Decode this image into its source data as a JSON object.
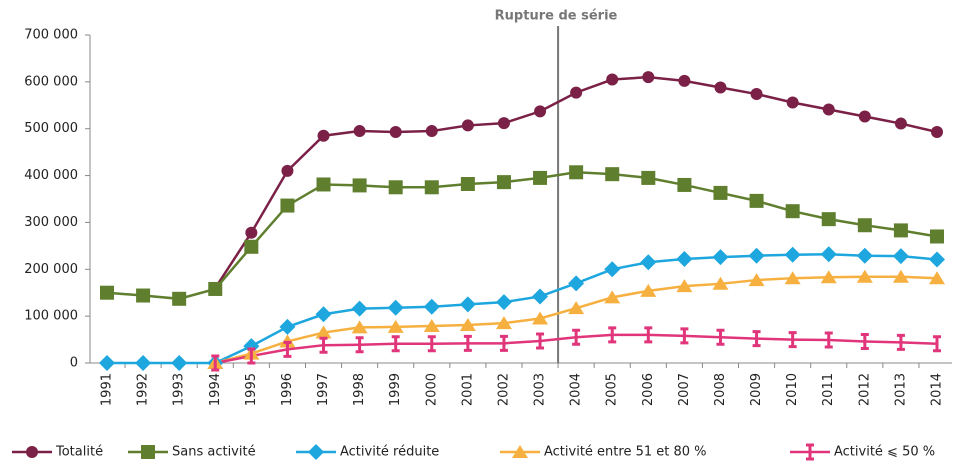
{
  "chart_data": {
    "type": "line",
    "annotations": [
      "Rupture de série"
    ],
    "categories": [
      "1991",
      "1992",
      "1993",
      "1994",
      "1995",
      "1996",
      "1997",
      "1998",
      "1999",
      "2000",
      "2001",
      "2002",
      "2003",
      "2004",
      "2005",
      "2006",
      "2007",
      "2008",
      "2009",
      "2010",
      "2011",
      "2012",
      "2013",
      "2014"
    ],
    "ylim": [
      0,
      700000
    ],
    "yticks": [
      {
        "value": 0,
        "label": "0"
      },
      {
        "value": 100000,
        "label": "100 000"
      },
      {
        "value": 200000,
        "label": "200 000"
      },
      {
        "value": 300000,
        "label": "300 000"
      },
      {
        "value": 400000,
        "label": "400 000"
      },
      {
        "value": 500000,
        "label": "500 000"
      },
      {
        "value": 600000,
        "label": "600 000"
      },
      {
        "value": 700000,
        "label": "700 000"
      }
    ],
    "legend": "bottom",
    "series": [
      {
        "name": "Totalité",
        "color": "#7b2046",
        "marker": "circle",
        "values": [
          null,
          null,
          null,
          160000,
          278000,
          410000,
          485000,
          495000,
          493000,
          495000,
          507000,
          512000,
          537000,
          577000,
          605000,
          610000,
          602000,
          588000,
          574000,
          556000,
          541000,
          526000,
          511000,
          493000
        ]
      },
      {
        "name": "Sans activité",
        "color": "#5f7f2f",
        "marker": "square",
        "values": [
          150000,
          144000,
          137000,
          158000,
          248000,
          336000,
          381000,
          379000,
          375000,
          375000,
          382000,
          386000,
          395000,
          407000,
          403000,
          395000,
          380000,
          363000,
          346000,
          324000,
          307000,
          294000,
          283000,
          270000
        ]
      },
      {
        "name": "Activité réduite",
        "color": "#1ea6de",
        "marker": "diamond",
        "values": [
          0,
          0,
          0,
          0,
          36000,
          77000,
          104000,
          116000,
          118000,
          120000,
          125000,
          130000,
          142000,
          170000,
          200000,
          215000,
          222000,
          226000,
          229000,
          231000,
          232000,
          229000,
          228000,
          221000
        ]
      },
      {
        "name": "Activité entre 51 et 80 %",
        "color": "#f6b040",
        "marker": "triangle",
        "values": [
          null,
          null,
          null,
          0,
          20000,
          46000,
          65000,
          76000,
          77000,
          79000,
          81000,
          85000,
          95000,
          117000,
          140000,
          154000,
          164000,
          169000,
          177000,
          181000,
          183000,
          184000,
          184000,
          181000
        ]
      },
      {
        "name": "Activité ⩽ 50 %",
        "color": "#e0357a",
        "marker": "bar",
        "values": [
          null,
          null,
          null,
          0,
          15000,
          29000,
          38000,
          39000,
          41000,
          41000,
          42000,
          42000,
          47000,
          55000,
          60000,
          60000,
          58000,
          55000,
          52000,
          50000,
          49000,
          46000,
          44000,
          41000
        ]
      }
    ]
  }
}
